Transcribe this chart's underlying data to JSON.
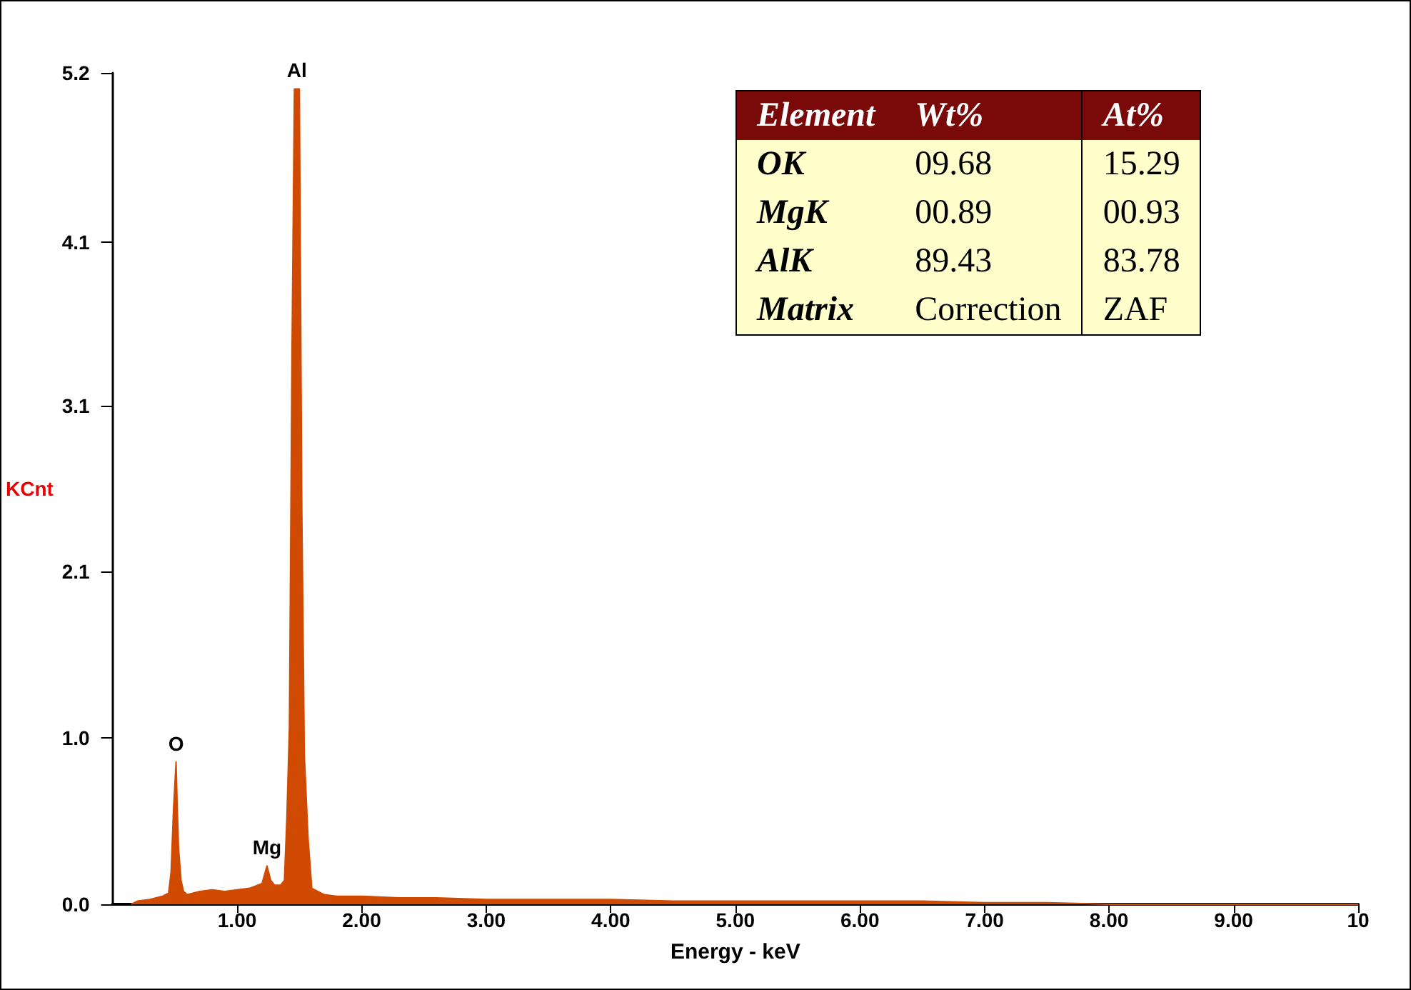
{
  "chart_data": {
    "type": "area",
    "xlabel": "Energy - keV",
    "ylabel": "KCnt",
    "x": [
      0.15,
      0.2,
      0.3,
      0.4,
      0.45,
      0.47,
      0.49,
      0.51,
      0.52,
      0.53,
      0.55,
      0.57,
      0.6,
      0.7,
      0.8,
      0.9,
      1.0,
      1.1,
      1.2,
      1.24,
      1.27,
      1.3,
      1.35,
      1.38,
      1.4,
      1.42,
      1.44,
      1.46,
      1.5,
      1.52,
      1.54,
      1.57,
      1.6,
      1.7,
      1.8,
      2.0,
      2.3,
      2.6,
      3.0,
      3.5,
      4.0,
      4.5,
      5.0,
      5.5,
      6.0,
      6.5,
      7.0,
      7.5,
      8.0,
      10.0
    ],
    "series": [
      {
        "color": "#d04a02",
        "values": [
          0,
          0.02,
          0.03,
          0.05,
          0.07,
          0.2,
          0.6,
          0.89,
          0.6,
          0.35,
          0.15,
          0.08,
          0.06,
          0.08,
          0.09,
          0.08,
          0.09,
          0.1,
          0.13,
          0.24,
          0.15,
          0.12,
          0.12,
          0.15,
          0.55,
          1.11,
          3.38,
          5.1,
          5.1,
          2.45,
          0.93,
          0.41,
          0.1,
          0.06,
          0.05,
          0.05,
          0.04,
          0.04,
          0.03,
          0.03,
          0.03,
          0.02,
          0.02,
          0.02,
          0.02,
          0.02,
          0.01,
          0.01,
          0,
          0
        ]
      }
    ],
    "xlim": [
      0,
      10
    ],
    "xticks": [
      {
        "value": 1,
        "label": "1.00"
      },
      {
        "value": 2,
        "label": "2.00"
      },
      {
        "value": 3,
        "label": "3.00"
      },
      {
        "value": 4,
        "label": "4.00"
      },
      {
        "value": 5,
        "label": "5.00"
      },
      {
        "value": 6,
        "label": "6.00"
      },
      {
        "value": 7,
        "label": "7.00"
      },
      {
        "value": 8,
        "label": "8.00"
      },
      {
        "value": 9,
        "label": "9.00"
      },
      10
    ],
    "ylim": [
      0,
      5.2
    ],
    "yticks": [
      {
        "value": 0,
        "label": "0.0"
      },
      {
        "value": 1.04,
        "label": "1.0"
      },
      {
        "value": 2.08,
        "label": "2.1"
      },
      {
        "value": 3.12,
        "label": "3.1"
      },
      {
        "value": 4.14,
        "label": "4.1"
      },
      {
        "value": 5.2,
        "label": "5.2"
      }
    ],
    "grid": false,
    "marker": "none",
    "line_style": "solid",
    "annotations": [
      {
        "text": "O",
        "x": 0.51,
        "y": 0.89
      },
      {
        "text": "Mg",
        "x": 1.24,
        "y": 0.24
      },
      {
        "text": "Al",
        "x": 1.48,
        "y": 5.1
      },
      "Element",
      "Wt%",
      "At%",
      "OK",
      "09.68",
      "15.29",
      "MgK",
      "00.89",
      "00.93",
      "AlK",
      "89.43",
      "83.78",
      "Matrix",
      "Correction",
      "ZAF"
    ]
  }
}
